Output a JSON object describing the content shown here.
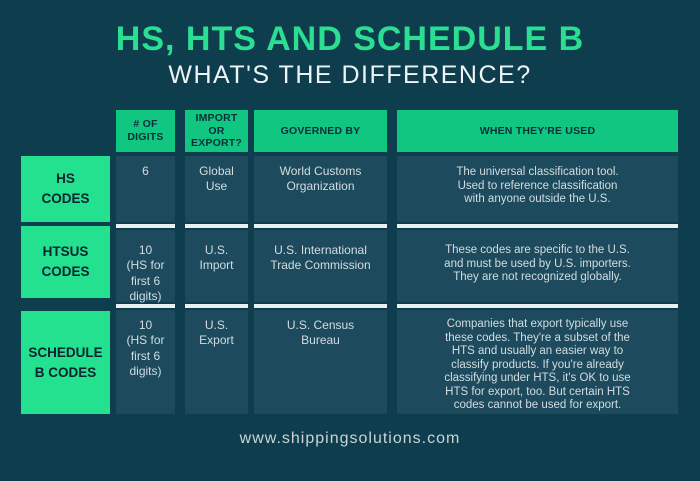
{
  "page": {
    "title": "HS, HTS AND SCHEDULE B",
    "subtitle": "WHAT'S THE DIFFERENCE?",
    "footer": "www.shippingsolutions.com"
  },
  "colors": {
    "background": "#0e3d4d",
    "cell_background": "#1d4a5c",
    "header_green": "#10c681",
    "label_green": "#23e18e",
    "title_green": "#2bdf92",
    "cell_text": "#d2dde1",
    "dark_text": "#0b2e3a",
    "row_separator": "#e9eff1"
  },
  "table": {
    "column_headers": {
      "digits": "# OF\nDIGITS",
      "import_or_export": "IMPORT\nOR\nEXPORT?",
      "governed_by": "GOVERNED BY",
      "when_used": "WHEN THEY'RE USED"
    },
    "rows": [
      {
        "label": "HS\nCODES",
        "digits": "6",
        "import_or_export": "Global\nUse",
        "governed_by": "World Customs\nOrganization",
        "when_used": "The universal classification tool.\nUsed to reference classification\nwith anyone outside the U.S."
      },
      {
        "label": "HTSUS\nCODES",
        "digits": "10\n(HS for\nfirst 6\ndigits)",
        "import_or_export": "U.S.\nImport",
        "governed_by": "U.S. International\nTrade Commission",
        "when_used": "These codes are specific to the U.S.\nand must be used by U.S. importers.\nThey are not recognized globally."
      },
      {
        "label": "SCHEDULE\nB CODES",
        "digits": "10\n(HS for\nfirst 6\ndigits)",
        "import_or_export": "U.S.\nExport",
        "governed_by": "U.S. Census\nBureau",
        "when_used": "Companies that export typically use\nthese codes. They're a subset of the\nHTS and usually an easier way to\nclassify products. If you're already\nclassifying under HTS, it's OK to use\nHTS for export, too. But certain HTS\ncodes cannot be used for export."
      }
    ]
  }
}
